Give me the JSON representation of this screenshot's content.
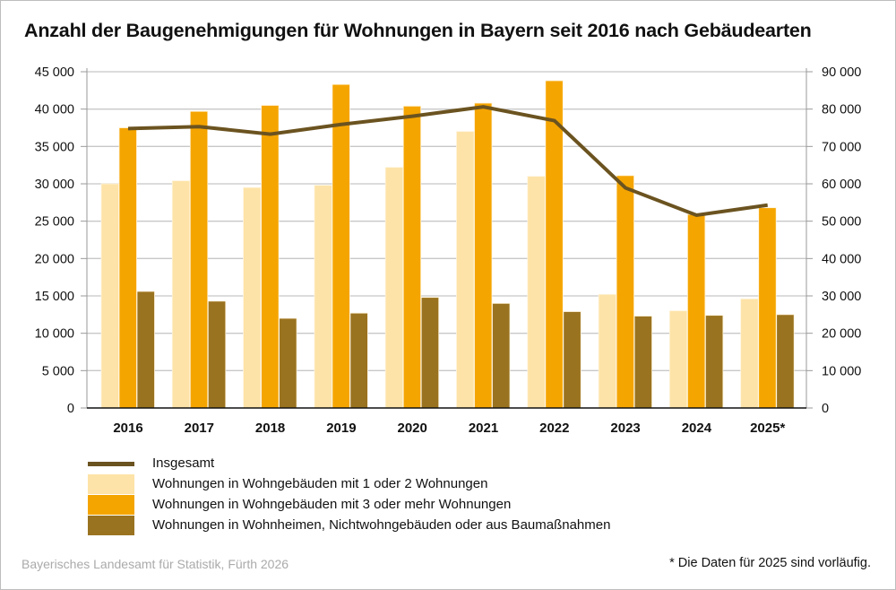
{
  "title": "Anzahl der Baugenehmigungen für Wohnungen in Bayern seit 2016 nach Gebäudearten",
  "source": "Bayerisches Landesamt für Statistik, Fürth 2026",
  "footnote": "* Die Daten für 2025 sind vorläufig.",
  "chart_data": {
    "type": "bar",
    "title": "Anzahl der Baugenehmigungen für Wohnungen in Bayern seit 2016 nach Gebäudearten",
    "categories": [
      "2016",
      "2017",
      "2018",
      "2019",
      "2020",
      "2021",
      "2022",
      "2023",
      "2024",
      "2025*"
    ],
    "left_axis": {
      "ylim": [
        0,
        45000
      ],
      "ticks": [
        0,
        5000,
        10000,
        15000,
        20000,
        25000,
        30000,
        35000,
        40000,
        45000
      ],
      "tick_labels": [
        "0",
        "5 000",
        "10 000",
        "15 000",
        "20 000",
        "25 000",
        "30 000",
        "35 000",
        "40 000",
        "45 000"
      ]
    },
    "right_axis": {
      "ylim": [
        0,
        90000
      ],
      "ticks": [
        0,
        10000,
        20000,
        30000,
        40000,
        50000,
        60000,
        70000,
        80000,
        90000
      ],
      "tick_labels": [
        "0",
        "10 000",
        "20 000",
        "30 000",
        "40 000",
        "50 000",
        "60 000",
        "70 000",
        "80 000",
        "90 000"
      ]
    },
    "grid": true,
    "legend_position": "bottom",
    "series": [
      {
        "name": "Insgesamt",
        "type": "line",
        "axis": "right",
        "color": "#6b5320",
        "values": [
          74800,
          75300,
          73300,
          75900,
          78100,
          80600,
          76900,
          58900,
          51600,
          54300
        ]
      },
      {
        "name": "Wohnungen in Wohngebäuden mit 1 oder 2 Wohnungen",
        "type": "bar",
        "axis": "left",
        "color": "#fde3a7",
        "values": [
          30000,
          30400,
          29500,
          29800,
          32200,
          37000,
          31000,
          15200,
          13000,
          14600
        ]
      },
      {
        "name": "Wohnungen in Wohngebäuden mit 3 oder mehr Wohnungen",
        "type": "bar",
        "axis": "left",
        "color": "#f5a500",
        "values": [
          37500,
          39700,
          40500,
          43300,
          40400,
          40800,
          43800,
          31100,
          25900,
          26800
        ]
      },
      {
        "name": "Wohnungen in Wohnheimen, Nichtwohngebäuden oder aus Baumaßnahmen",
        "type": "bar",
        "axis": "left",
        "color": "#9a7320",
        "values": [
          15600,
          14300,
          12000,
          12700,
          14800,
          14000,
          12900,
          12300,
          12400,
          12500
        ]
      }
    ]
  }
}
